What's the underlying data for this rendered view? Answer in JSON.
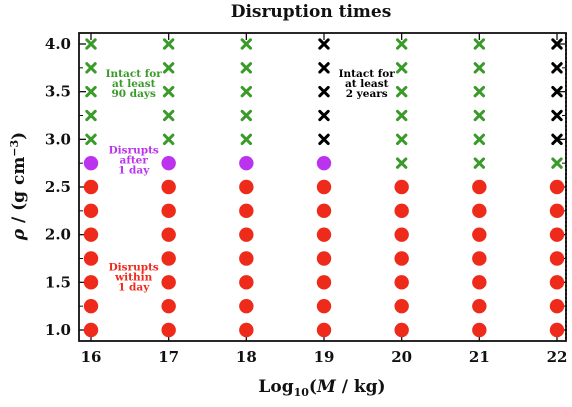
{
  "chart_data": {
    "type": "scatter",
    "title": "Disruption times",
    "xlabel_parts": {
      "pre": "Log",
      "sub": "10",
      "mid": "(",
      "var": "M",
      "post": " / kg)"
    },
    "ylabel_parts": {
      "pre": "ρ",
      "mid": " / (g cm",
      "sup": "−3",
      "post": ")"
    },
    "xlim": [
      16,
      22
    ],
    "ylim": [
      0.95,
      4.05
    ],
    "xticks": [
      16,
      17,
      18,
      19,
      20,
      21,
      22
    ],
    "xtick_labels": [
      "16",
      "17",
      "18",
      "19",
      "20",
      "21",
      "22"
    ],
    "yticks": [
      1.0,
      1.5,
      2.0,
      2.5,
      3.0,
      3.5,
      4.0
    ],
    "ytick_labels": [
      "1.0",
      "1.5",
      "2.0",
      "2.5",
      "3.0",
      "3.5",
      "4.0"
    ],
    "y_grid_values": [
      1.0,
      1.25,
      1.5,
      1.75,
      2.0,
      2.25,
      2.5,
      2.75,
      3.0,
      3.25,
      3.5,
      3.75,
      4.0
    ],
    "categories": [
      {
        "id": "red",
        "label": "Disrupts within 1 day",
        "color": "#ee2a1b",
        "marker": "circle"
      },
      {
        "id": "magenta",
        "label": "Disrupts after 1 day",
        "color": "#bb33ee",
        "marker": "circle"
      },
      {
        "id": "green",
        "label": "Intact for at least 90 days",
        "color": "#3a9a2a",
        "marker": "cross"
      },
      {
        "id": "black",
        "label": "Intact for at least 2 years",
        "color": "#000000",
        "marker": "cross"
      }
    ],
    "columns": [
      {
        "x": 16,
        "status": [
          "red",
          "red",
          "red",
          "red",
          "red",
          "red",
          "red",
          "magenta",
          "green",
          "green",
          "green",
          "green",
          "green"
        ]
      },
      {
        "x": 17,
        "status": [
          "red",
          "red",
          "red",
          "red",
          "red",
          "red",
          "red",
          "magenta",
          "green",
          "green",
          "green",
          "green",
          "green"
        ]
      },
      {
        "x": 18,
        "status": [
          "red",
          "red",
          "red",
          "red",
          "red",
          "red",
          "red",
          "magenta",
          "green",
          "green",
          "green",
          "green",
          "green"
        ]
      },
      {
        "x": 19,
        "status": [
          "red",
          "red",
          "red",
          "red",
          "red",
          "red",
          "red",
          "magenta",
          "black",
          "black",
          "black",
          "black",
          "black"
        ]
      },
      {
        "x": 20,
        "status": [
          "red",
          "red",
          "red",
          "red",
          "red",
          "red",
          "red",
          "green",
          "green",
          "green",
          "green",
          "green",
          "green"
        ]
      },
      {
        "x": 21,
        "status": [
          "red",
          "red",
          "red",
          "red",
          "red",
          "red",
          "red",
          "green",
          "green",
          "green",
          "green",
          "green",
          "green"
        ]
      },
      {
        "x": 22,
        "status": [
          "red",
          "red",
          "red",
          "red",
          "red",
          "red",
          "red",
          "green",
          "black",
          "black",
          "black",
          "black",
          "black"
        ]
      }
    ],
    "annotations": [
      {
        "lines": [
          "Intact for",
          "at least",
          "90 days"
        ],
        "x": 16.55,
        "y": 3.58,
        "color": "#3a9a2a"
      },
      {
        "lines": [
          "Intact for",
          "at least",
          "2 years"
        ],
        "x": 19.55,
        "y": 3.58,
        "color": "#000000"
      },
      {
        "lines": [
          "Disrupts",
          "after",
          "1 day"
        ],
        "x": 16.55,
        "y": 2.78,
        "color": "#bb33ee"
      },
      {
        "lines": [
          "Disrupts",
          "within",
          "1 day"
        ],
        "x": 16.55,
        "y": 1.55,
        "color": "#ee2a1b"
      }
    ],
    "grid": false,
    "legend": "none"
  }
}
